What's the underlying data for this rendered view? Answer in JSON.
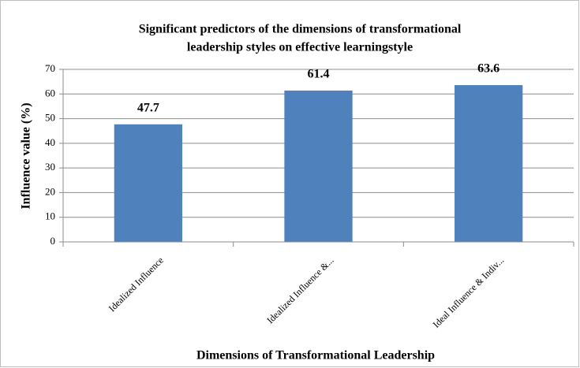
{
  "chart_data": {
    "type": "bar",
    "title": [
      "Significant predictors of the  dimensions of transformational",
      "leadership styles on effective learningstyle"
    ],
    "x_label": "Dimensions of Transformational Leadership",
    "y_label": "Influence value (%)",
    "categories": [
      "Idealized Influence",
      "Idealized Influence &...",
      "Ideal Influence & Indiv..."
    ],
    "values": [
      47.7,
      61.4,
      63.6
    ],
    "color": "#4f81bd",
    "ylim": [
      0,
      70
    ],
    "yticks": [
      0,
      10,
      20,
      30,
      40,
      50,
      60,
      70
    ],
    "grid": true
  }
}
